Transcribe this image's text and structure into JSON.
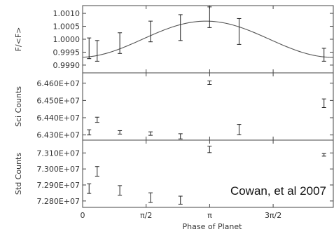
{
  "chart_data": [
    {
      "type": "line",
      "ylabel": "F/<F>",
      "ylim": [
        0.9987,
        1.0013
      ],
      "xlim": [
        0,
        6.2
      ],
      "y_ticks": [
        {
          "value": 1.001,
          "label": "1.0010"
        },
        {
          "value": 1.0005,
          "label": "1.0005"
        },
        {
          "value": 1.0,
          "label": "1.0000"
        },
        {
          "value": 0.9995,
          "label": "0.9995"
        },
        {
          "value": 0.999,
          "label": "0.9990"
        }
      ],
      "model_curve": {
        "mean": 1.0,
        "amplitude": 0.0007,
        "peak_phase": 3.05
      },
      "series": [
        {
          "points": [
            {
              "x": 0.16,
              "y": 0.99965,
              "err": 0.0004
            },
            {
              "x": 0.36,
              "y": 0.99955,
              "err": 0.0004
            },
            {
              "x": 0.92,
              "y": 0.99985,
              "err": 0.0004
            },
            {
              "x": 1.68,
              "y": 1.0003,
              "err": 0.0004
            },
            {
              "x": 2.42,
              "y": 1.00045,
              "err": 0.0005
            },
            {
              "x": 3.14,
              "y": 1.00085,
              "err": 0.0004
            },
            {
              "x": 3.87,
              "y": 1.0003,
              "err": 0.0005
            },
            {
              "x": 5.97,
              "y": 0.9994,
              "err": 0.00025
            }
          ]
        }
      ]
    },
    {
      "type": "scatter",
      "ylabel": "Sci Counts",
      "ylim": [
        64270000.0,
        64660000.0
      ],
      "xlim": [
        0,
        6.2
      ],
      "y_ticks": [
        {
          "value": 64600000.0,
          "label": "6.460E+07"
        },
        {
          "value": 64500000.0,
          "label": "6.450E+07"
        },
        {
          "value": 64400000.0,
          "label": "6.440E+07"
        },
        {
          "value": 64300000.0,
          "label": "6.430E+07"
        }
      ],
      "series": [
        {
          "points": [
            {
              "x": 0.16,
              "y": 64315000.0,
              "err": 15000
            },
            {
              "x": 0.36,
              "y": 64388000.0,
              "err": 15000
            },
            {
              "x": 0.92,
              "y": 64315000.0,
              "err": 10000
            },
            {
              "x": 1.68,
              "y": 64308000.0,
              "err": 10000
            },
            {
              "x": 2.42,
              "y": 64292000.0,
              "err": 15000
            },
            {
              "x": 3.14,
              "y": 64603000.0,
              "err": 10000
            },
            {
              "x": 3.87,
              "y": 64331000.0,
              "err": 30000
            },
            {
              "x": 5.97,
              "y": 64484000.0,
              "err": 25000
            }
          ]
        }
      ]
    },
    {
      "type": "scatter",
      "ylabel": "Std Counts",
      "ylim": [
        72760000.0,
        73180000.0
      ],
      "xlim": [
        0,
        6.2
      ],
      "x_ticks": [
        {
          "value": 0,
          "label": "0"
        },
        {
          "value": 1.5708,
          "label": "π/2"
        },
        {
          "value": 3.1416,
          "label": "π"
        },
        {
          "value": 4.7124,
          "label": "3π/2"
        }
      ],
      "xlabel": "Phase of Planet",
      "y_ticks": [
        {
          "value": 73100000.0,
          "label": "7.310E+07"
        },
        {
          "value": 73000000.0,
          "label": "7.300E+07"
        },
        {
          "value": 72900000.0,
          "label": "7.290E+07"
        },
        {
          "value": 72800000.0,
          "label": "7.280E+07"
        }
      ],
      "annotations": [
        "Cowan, et al 2007"
      ],
      "series": [
        {
          "points": [
            {
              "x": 0.16,
              "y": 72877000.0,
              "err": 30000
            },
            {
              "x": 0.36,
              "y": 72985000.0,
              "err": 30000
            },
            {
              "x": 0.92,
              "y": 72866000.0,
              "err": 30000
            },
            {
              "x": 1.68,
              "y": 72821000.0,
              "err": 30000
            },
            {
              "x": 2.42,
              "y": 72805000.0,
              "err": 25000
            },
            {
              "x": 3.14,
              "y": 73122000.0,
              "err": 20000
            },
            {
              "x": 5.97,
              "y": 73088000.0,
              "err": 8000
            }
          ]
        }
      ]
    }
  ]
}
